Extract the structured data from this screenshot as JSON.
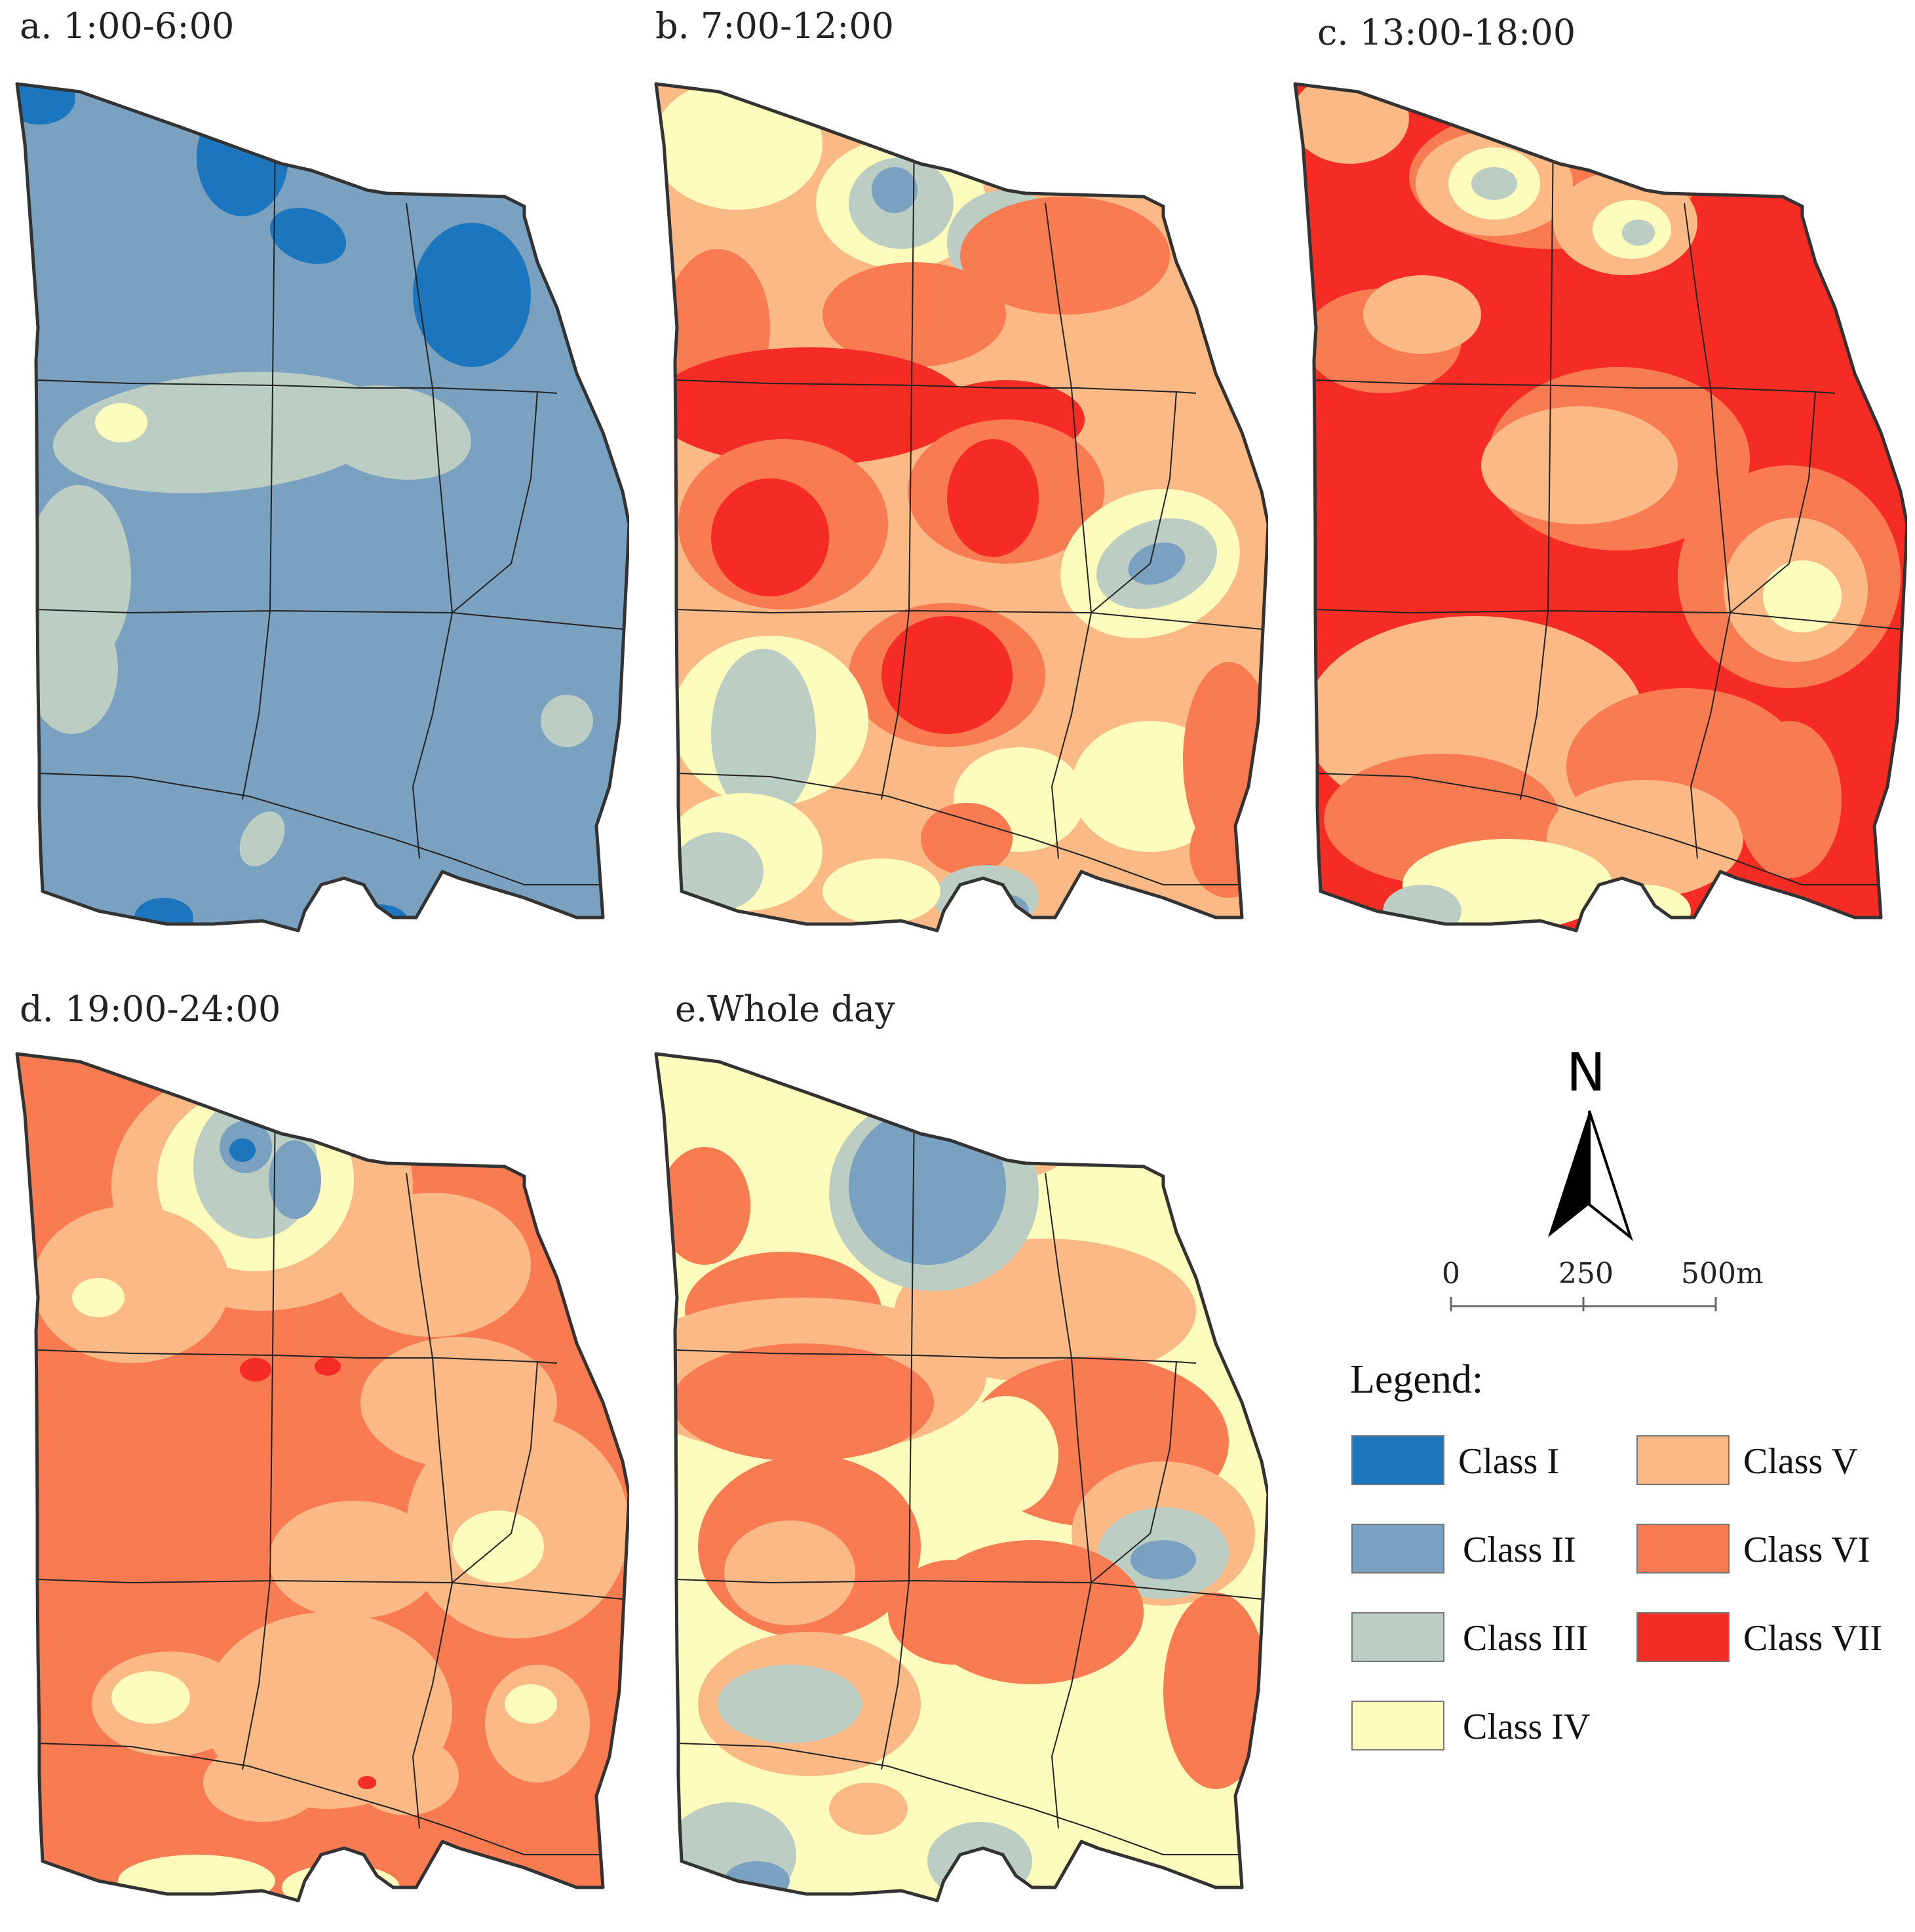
{
  "panels": [
    {
      "id": "a",
      "title": "a. 1:00-6:00"
    },
    {
      "id": "b",
      "title": "b. 7:00-12:00"
    },
    {
      "id": "c",
      "title": "c. 13:00-18:00"
    },
    {
      "id": "d",
      "title": "d. 19:00-24:00"
    },
    {
      "id": "e",
      "title": "e.Whole day"
    }
  ],
  "north": {
    "label": "N"
  },
  "scale": {
    "labels": [
      "0",
      "250",
      "500m"
    ]
  },
  "legend": {
    "title": "Legend:",
    "items": [
      {
        "label": "Class I",
        "color": "#1b76bd"
      },
      {
        "label": "Class II",
        "color": "#7aa1bf"
      },
      {
        "label": "Class III",
        "color": "#bccdc4"
      },
      {
        "label": "Class IV",
        "color": "#fdfcbd"
      },
      {
        "label": "Class V",
        "color": "#fbb986"
      },
      {
        "label": "Class VI",
        "color": "#f97b52"
      },
      {
        "label": "Class VII",
        "color": "#f52c23"
      }
    ]
  }
}
